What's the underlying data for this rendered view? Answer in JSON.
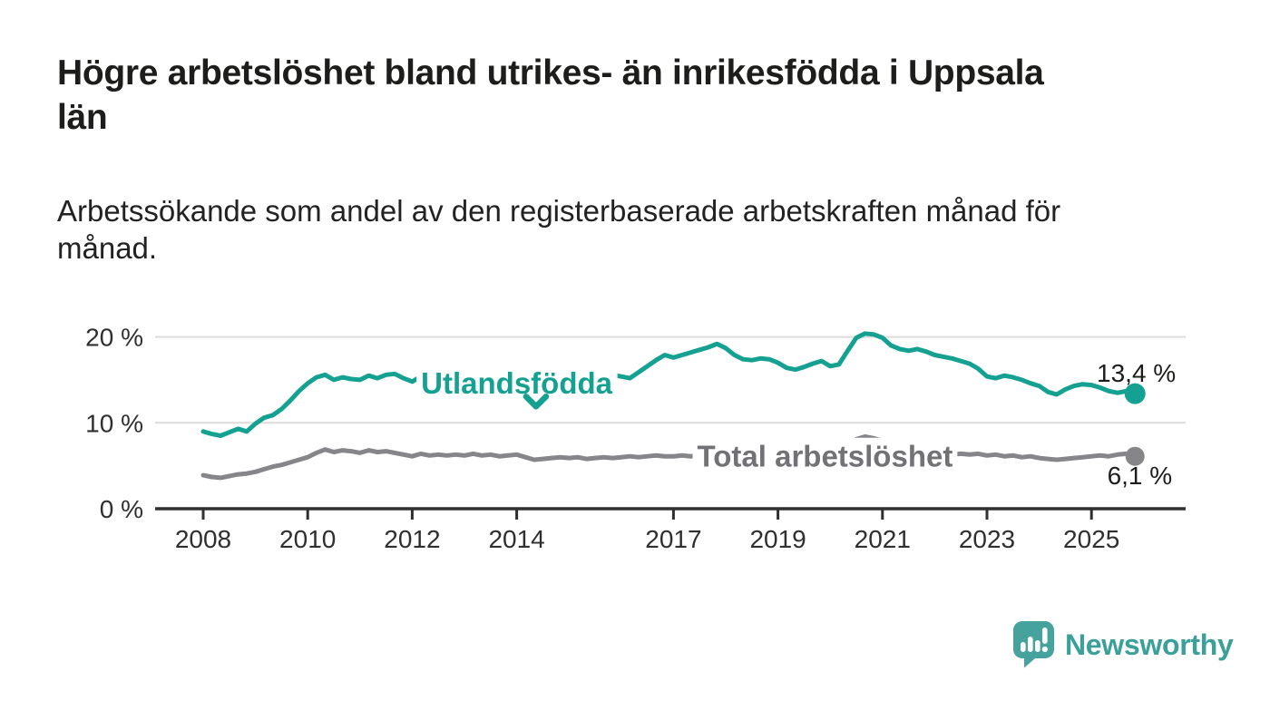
{
  "title": "Högre arbetslöshet bland utrikes- än inrikesfödda i Uppsala\nlän",
  "subtitle": "Arbetssökande som andel av den registerbaserade arbetskraften månad för\nmånad.",
  "branding": {
    "logo_text": "Newsworthy",
    "logo_color": "#3aa099",
    "logo_icon": "speech-bubble-with-bar-chart-and-exclamation"
  },
  "chart_data": {
    "type": "line",
    "description": "Monthly unemployment share, plotted as two line series",
    "x_start": 2008.0,
    "x_step_months": 2,
    "x_end": 2025.83,
    "grid": "horizontal",
    "legend_position": "inline-labels-on-lines",
    "ylim": [
      0,
      21.8
    ],
    "yticks": {
      "values": [
        0,
        10,
        20
      ],
      "labels": [
        "0 %",
        "10 %",
        "20 %"
      ]
    },
    "xticks": {
      "values": [
        2008,
        2010,
        2012,
        2014,
        2017,
        2019,
        2021,
        2023,
        2025
      ],
      "labels": [
        "2008",
        "2010",
        "2012",
        "2014",
        "2017",
        "2019",
        "2021",
        "2023",
        "2025"
      ]
    },
    "colors": {
      "grid": "#dcdcdc",
      "axis": "#2f2f2f",
      "tick_text": "#2f2f2f",
      "value_text": "#1d1d1b"
    },
    "series": [
      {
        "name": "Utlandsfödda",
        "color": "#15a191",
        "label_color": "#15a191",
        "label_at": {
          "year": 2014.0,
          "pct": 14.6
        },
        "pointer": {
          "year": 2014.37,
          "pct": 11.9,
          "dir": "down"
        },
        "end_value_label": "13,4 %",
        "end_label_offset": {
          "dx": 45,
          "dy": -13
        },
        "end_dot_radius": 11.5,
        "values": [
          9.0,
          8.7,
          8.5,
          8.9,
          9.3,
          9.0,
          9.9,
          10.6,
          10.9,
          11.6,
          12.6,
          13.7,
          14.6,
          15.3,
          15.6,
          15.0,
          15.3,
          15.1,
          15.0,
          15.5,
          15.2,
          15.6,
          15.7,
          15.2,
          14.8,
          15.4,
          15.0,
          15.2,
          14.9,
          14.7,
          14.6,
          14.8,
          14.5,
          14.3,
          14.4,
          14.2,
          14.0,
          13.8,
          13.6,
          13.5,
          13.7,
          13.9,
          14.1,
          14.4,
          14.7,
          15.0,
          15.3,
          15.6,
          15.4,
          15.2,
          15.9,
          16.6,
          17.3,
          17.9,
          17.6,
          17.9,
          18.2,
          18.5,
          18.8,
          19.2,
          18.7,
          17.9,
          17.4,
          17.3,
          17.5,
          17.4,
          17.0,
          16.4,
          16.2,
          16.5,
          16.9,
          17.2,
          16.6,
          16.8,
          18.4,
          19.9,
          20.4,
          20.3,
          19.9,
          19.0,
          18.6,
          18.4,
          18.6,
          18.3,
          17.9,
          17.7,
          17.5,
          17.2,
          16.9,
          16.3,
          15.4,
          15.2,
          15.5,
          15.3,
          15.0,
          14.6,
          14.3,
          13.6,
          13.3,
          13.9,
          14.3,
          14.5,
          14.4,
          14.1,
          13.7,
          13.5,
          13.7,
          13.4
        ]
      },
      {
        "name": "Total arbetslöshet",
        "color": "#85858a",
        "label_color": "#717176",
        "label_at": {
          "year": 2019.9,
          "pct": 6.1
        },
        "end_value_label": "6,1 %",
        "end_label_offset": {
          "dx": 41,
          "dy": 31
        },
        "end_dot_radius": 10.5,
        "values": [
          3.9,
          3.7,
          3.6,
          3.8,
          4.0,
          4.1,
          4.3,
          4.6,
          4.9,
          5.1,
          5.4,
          5.7,
          6.0,
          6.5,
          6.9,
          6.6,
          6.8,
          6.7,
          6.5,
          6.8,
          6.6,
          6.7,
          6.5,
          6.3,
          6.1,
          6.4,
          6.2,
          6.3,
          6.2,
          6.3,
          6.2,
          6.4,
          6.2,
          6.3,
          6.1,
          6.2,
          6.3,
          6.0,
          5.7,
          5.8,
          5.9,
          6.0,
          5.9,
          6.0,
          5.8,
          5.9,
          6.0,
          5.9,
          6.0,
          6.1,
          6.0,
          6.1,
          6.2,
          6.1,
          6.1,
          6.2,
          6.1,
          6.2,
          6.1,
          6.0,
          5.9,
          5.8,
          5.7,
          5.7,
          5.8,
          5.7,
          5.6,
          5.7,
          5.8,
          5.9,
          6.0,
          6.0,
          6.1,
          6.4,
          7.5,
          8.1,
          8.4,
          8.2,
          7.9,
          7.6,
          7.3,
          7.0,
          6.8,
          6.7,
          6.5,
          6.4,
          6.3,
          6.4,
          6.3,
          6.4,
          6.2,
          6.3,
          6.1,
          6.2,
          6.0,
          6.1,
          5.9,
          5.8,
          5.7,
          5.8,
          5.9,
          6.0,
          6.1,
          6.2,
          6.1,
          6.3,
          6.4,
          6.1
        ]
      }
    ]
  }
}
